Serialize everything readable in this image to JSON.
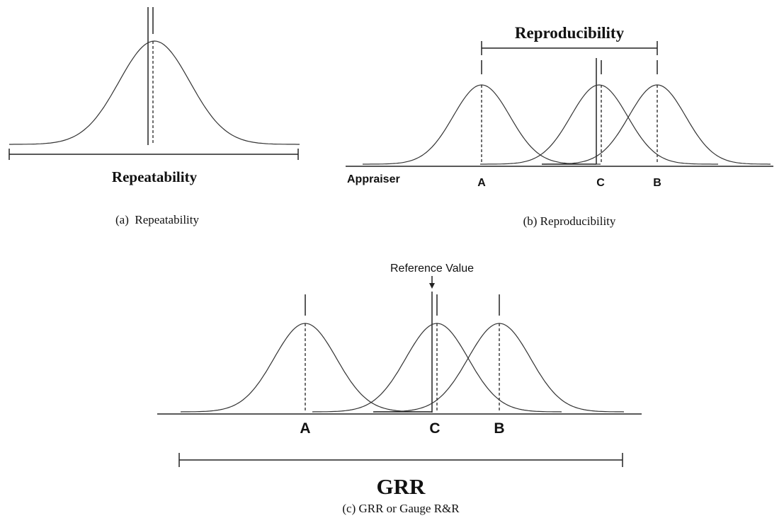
{
  "panels": [
    {
      "label": "Repeatability",
      "caption": "(a)  Repeatability"
    },
    {
      "label": "Reproducibility",
      "axis_label": "Appraiser",
      "points": [
        "A",
        "C",
        "B"
      ],
      "caption": "(b) Reproducibility"
    },
    {
      "annotation": "Reference Value",
      "points": [
        "A",
        "C",
        "B"
      ],
      "label": "GRR",
      "caption": "(c) GRR or Gauge R&R"
    }
  ]
}
